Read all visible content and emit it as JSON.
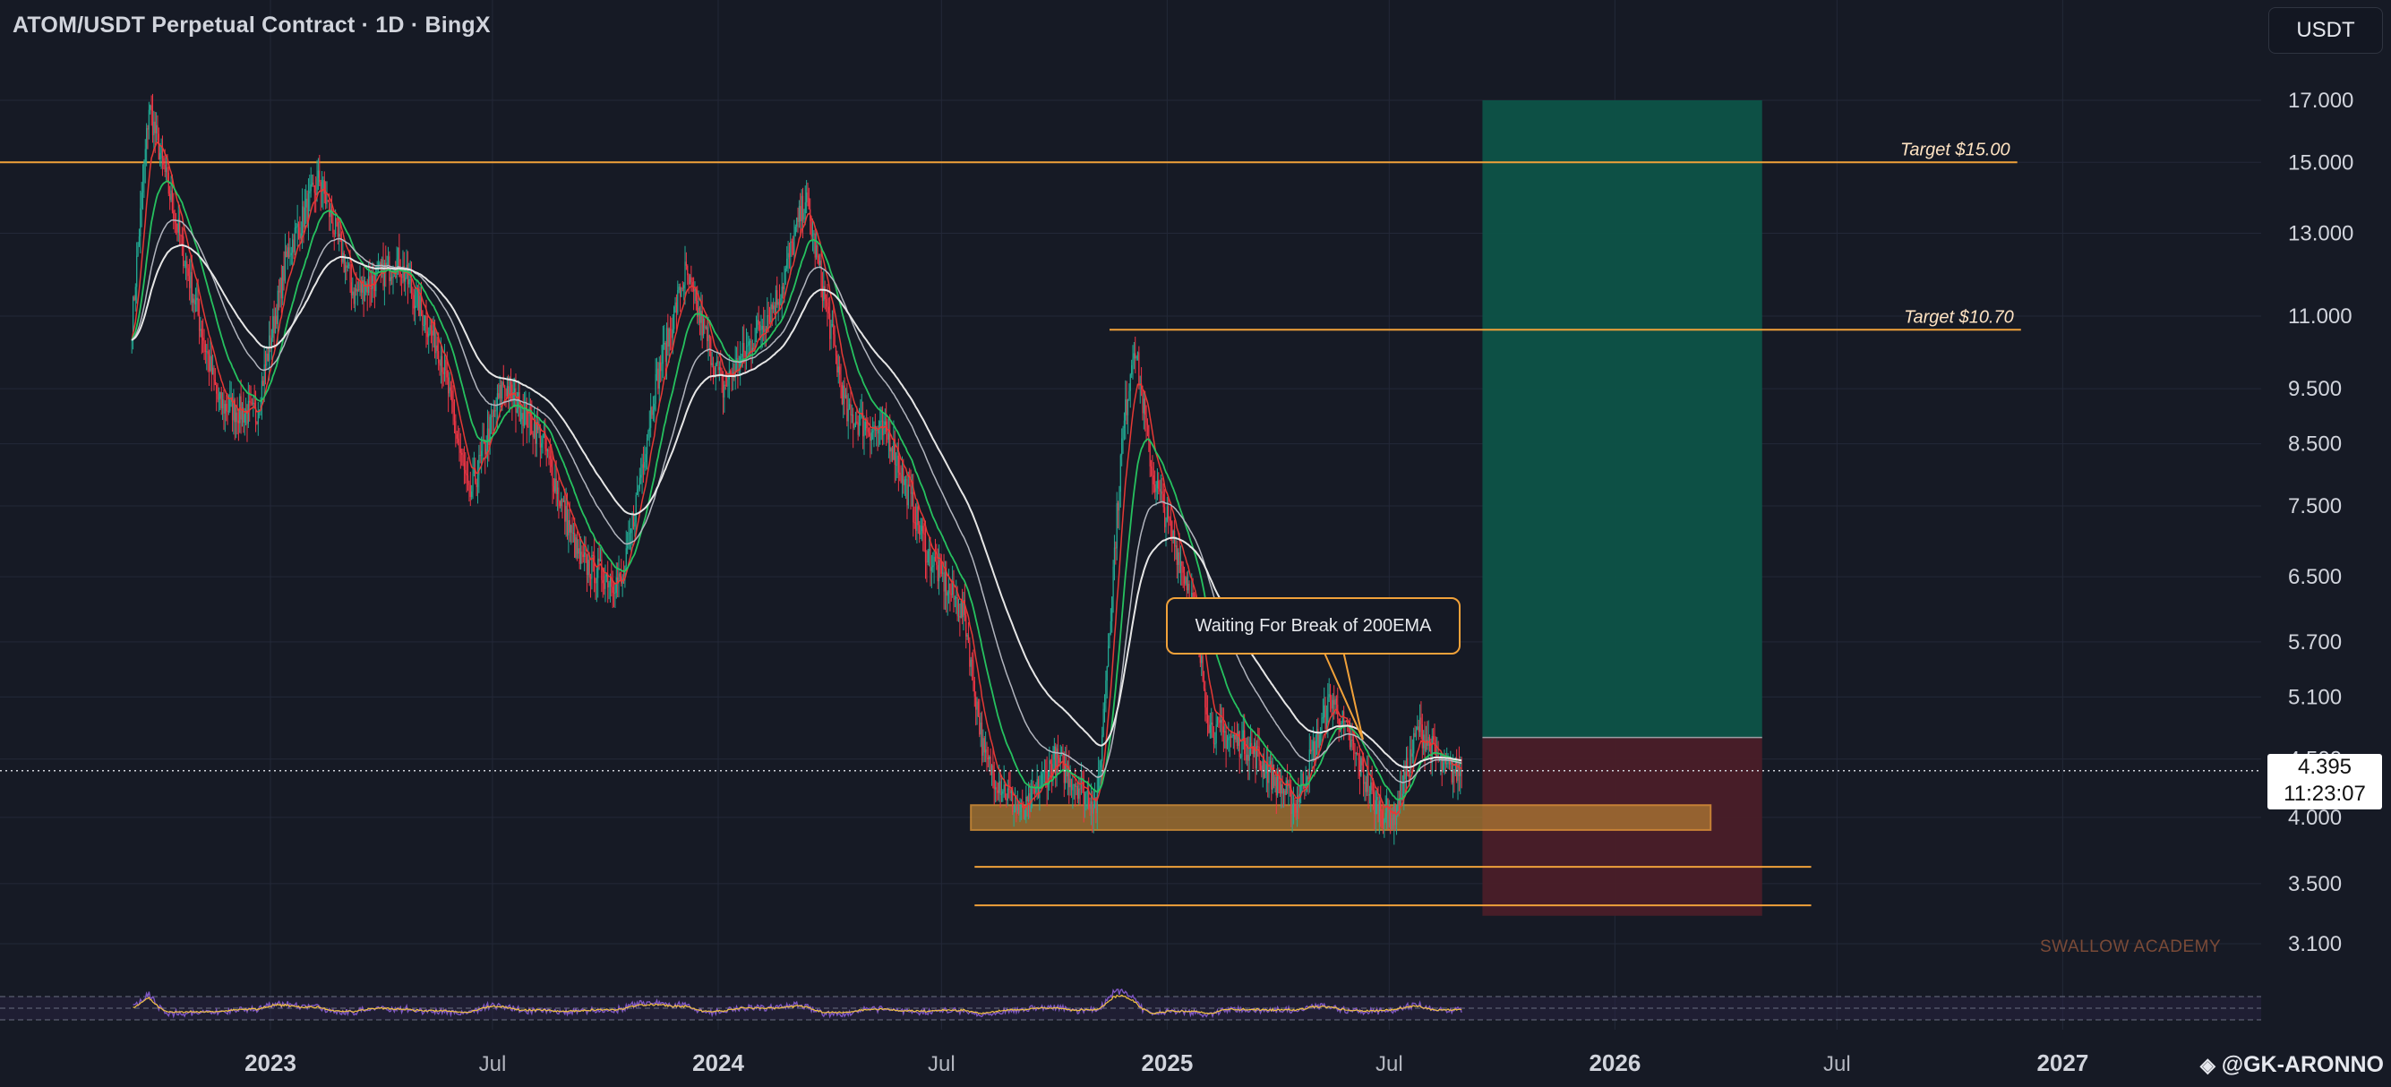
{
  "header": {
    "title": "ATOM/USDT Perpetual Contract · 1D · BingX",
    "currency_button": "USDT"
  },
  "price_label": {
    "price": "4.395",
    "countdown": "11:23:07"
  },
  "attribution": "@GK-ARONNO",
  "watermark": "SWALLOW ACADEMY",
  "callout": "Waiting For Break of 200EMA",
  "colors": {
    "background": "#161a25",
    "grid": "#232838",
    "candle_up": "#22ab94",
    "candle_down": "#f23645",
    "ema_short": "#e53935",
    "ema_mid": "#26c15f",
    "ema_long_1": "#e6e6e6",
    "ema_long_2": "#b2b5be",
    "levels": "#f0a13a",
    "target_zone": "#0d5347",
    "stop_zone": "#4a1e28",
    "rsi": "#7e57c2"
  },
  "chart_data": {
    "type": "candlestick",
    "y_scale": "log",
    "ylim": [
      2.8,
      19.5
    ],
    "y_ticks": [
      "17.000",
      "15.000",
      "13.000",
      "11.000",
      "9.500",
      "8.500",
      "7.500",
      "6.500",
      "5.700",
      "5.100",
      "4.500",
      "4.000",
      "3.500",
      "3.100"
    ],
    "x_ticks": [
      "2023",
      "Jul",
      "2024",
      "Jul",
      "2025",
      "Jul",
      "2026",
      "Jul",
      "2027"
    ],
    "x_ticks_bold": [
      "2023",
      "2024",
      "2025",
      "2026",
      "2027"
    ],
    "current_price": 4.395,
    "price_path_samples": [
      {
        "date": "2022-09-10",
        "price": 10.8
      },
      {
        "date": "2022-09-24",
        "price": 16.8
      },
      {
        "date": "2022-10-22",
        "price": 12.5
      },
      {
        "date": "2022-11-20",
        "price": 9.2
      },
      {
        "date": "2022-12-20",
        "price": 9.0
      },
      {
        "date": "2023-01-15",
        "price": 12.5
      },
      {
        "date": "2023-02-10",
        "price": 14.5
      },
      {
        "date": "2023-03-10",
        "price": 11.5
      },
      {
        "date": "2023-04-15",
        "price": 12.3
      },
      {
        "date": "2023-05-20",
        "price": 10.2
      },
      {
        "date": "2023-06-12",
        "price": 7.6
      },
      {
        "date": "2023-07-10",
        "price": 9.6
      },
      {
        "date": "2023-08-10",
        "price": 8.6
      },
      {
        "date": "2023-09-10",
        "price": 6.7
      },
      {
        "date": "2023-10-15",
        "price": 6.4
      },
      {
        "date": "2023-11-10",
        "price": 9.5
      },
      {
        "date": "2023-12-05",
        "price": 12.0
      },
      {
        "date": "2024-01-05",
        "price": 9.5
      },
      {
        "date": "2024-02-20",
        "price": 11.5
      },
      {
        "date": "2024-03-12",
        "price": 14.0
      },
      {
        "date": "2024-04-15",
        "price": 9.0
      },
      {
        "date": "2024-05-20",
        "price": 8.6
      },
      {
        "date": "2024-06-20",
        "price": 6.8
      },
      {
        "date": "2024-07-20",
        "price": 6.0
      },
      {
        "date": "2024-08-05",
        "price": 4.5
      },
      {
        "date": "2024-09-05",
        "price": 4.0
      },
      {
        "date": "2024-10-01",
        "price": 4.5
      },
      {
        "date": "2024-11-05",
        "price": 4.1
      },
      {
        "date": "2024-11-25",
        "price": 8.5
      },
      {
        "date": "2024-12-05",
        "price": 10.5
      },
      {
        "date": "2024-12-20",
        "price": 8.0
      },
      {
        "date": "2025-01-20",
        "price": 6.3
      },
      {
        "date": "2025-02-05",
        "price": 4.8
      },
      {
        "date": "2025-03-10",
        "price": 4.6
      },
      {
        "date": "2025-04-15",
        "price": 4.1
      },
      {
        "date": "2025-05-15",
        "price": 5.1
      },
      {
        "date": "2025-06-20",
        "price": 4.1
      },
      {
        "date": "2025-07-05",
        "price": 4.0
      },
      {
        "date": "2025-07-25",
        "price": 4.8
      },
      {
        "date": "2025-08-15",
        "price": 4.4
      },
      {
        "date": "2025-08-30",
        "price": 4.395
      }
    ],
    "horizontal_levels": [
      {
        "label": "Target $15.00",
        "price": 15.0
      },
      {
        "label": "Target $10.70",
        "price": 10.7
      },
      {
        "label": "",
        "price": 3.62
      },
      {
        "label": "",
        "price": 3.35
      }
    ],
    "support_zone": {
      "from": 3.9,
      "to": 4.1
    },
    "position": {
      "entry": 4.7,
      "target": 17.0,
      "stop": 3.28,
      "start": "2025-09-15",
      "end": "2026-05-01"
    },
    "annotation": "Waiting For Break of 200EMA",
    "indicators": [
      "EMA short",
      "EMA mid",
      "EMA long",
      "EMA 200",
      "RSI"
    ]
  }
}
